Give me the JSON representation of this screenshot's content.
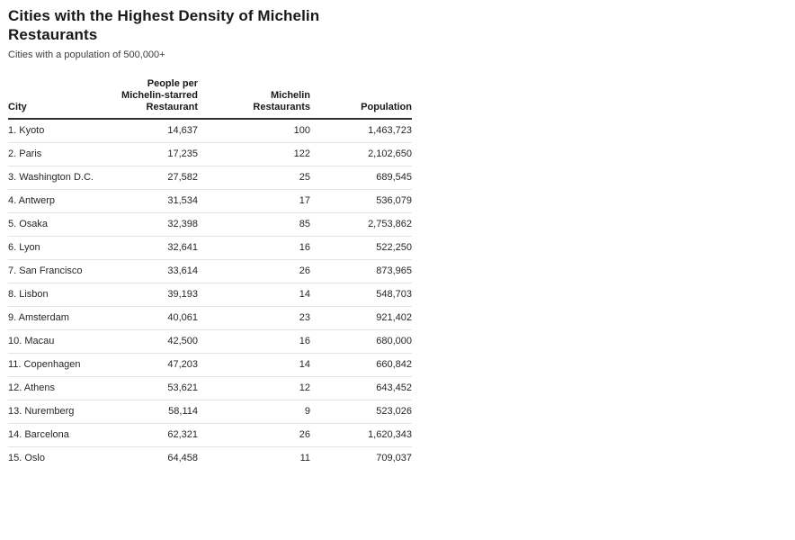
{
  "chart_data": {
    "type": "table",
    "title": "Cities with the Highest Density of Michelin Restaurants",
    "subtitle": "Cities with a population of 500,000+",
    "columns": [
      "City",
      "People per Michelin-starred Restaurant",
      "Michelin Restaurants",
      "Population"
    ],
    "rows": [
      {
        "city": "1. Kyoto",
        "people_per_restaurant": "14,637",
        "michelin_restaurants": "100",
        "population": "1,463,723"
      },
      {
        "city": "2. Paris",
        "people_per_restaurant": "17,235",
        "michelin_restaurants": "122",
        "population": "2,102,650"
      },
      {
        "city": "3. Washington D.C.",
        "people_per_restaurant": "27,582",
        "michelin_restaurants": "25",
        "population": "689,545"
      },
      {
        "city": "4. Antwerp",
        "people_per_restaurant": "31,534",
        "michelin_restaurants": "17",
        "population": "536,079"
      },
      {
        "city": "5. Osaka",
        "people_per_restaurant": "32,398",
        "michelin_restaurants": "85",
        "population": "2,753,862"
      },
      {
        "city": "6. Lyon",
        "people_per_restaurant": "32,641",
        "michelin_restaurants": "16",
        "population": "522,250"
      },
      {
        "city": "7. San Francisco",
        "people_per_restaurant": "33,614",
        "michelin_restaurants": "26",
        "population": "873,965"
      },
      {
        "city": "8. Lisbon",
        "people_per_restaurant": "39,193",
        "michelin_restaurants": "14",
        "population": "548,703"
      },
      {
        "city": "9. Amsterdam",
        "people_per_restaurant": "40,061",
        "michelin_restaurants": "23",
        "population": "921,402"
      },
      {
        "city": "10. Macau",
        "people_per_restaurant": "42,500",
        "michelin_restaurants": "16",
        "population": "680,000"
      },
      {
        "city": "11. Copenhagen",
        "people_per_restaurant": "47,203",
        "michelin_restaurants": "14",
        "population": "660,842"
      },
      {
        "city": "12. Athens",
        "people_per_restaurant": "53,621",
        "michelin_restaurants": "12",
        "population": "643,452"
      },
      {
        "city": "13. Nuremberg",
        "people_per_restaurant": "58,114",
        "michelin_restaurants": "9",
        "population": "523,026"
      },
      {
        "city": "14. Barcelona",
        "people_per_restaurant": "62,321",
        "michelin_restaurants": "26",
        "population": "1,620,343"
      },
      {
        "city": "15. Oslo",
        "people_per_restaurant": "64,458",
        "michelin_restaurants": "11",
        "population": "709,037"
      }
    ],
    "layout": {
      "numeric_columns_right_aligned": true,
      "grid": "horizontal-row-rules-only",
      "header_rule_color": "#2f2f2f",
      "row_rule_color": "#e4e4e4",
      "title_color": "#191919",
      "body_text_color": "#262626",
      "background_color": "#ffffff"
    }
  }
}
